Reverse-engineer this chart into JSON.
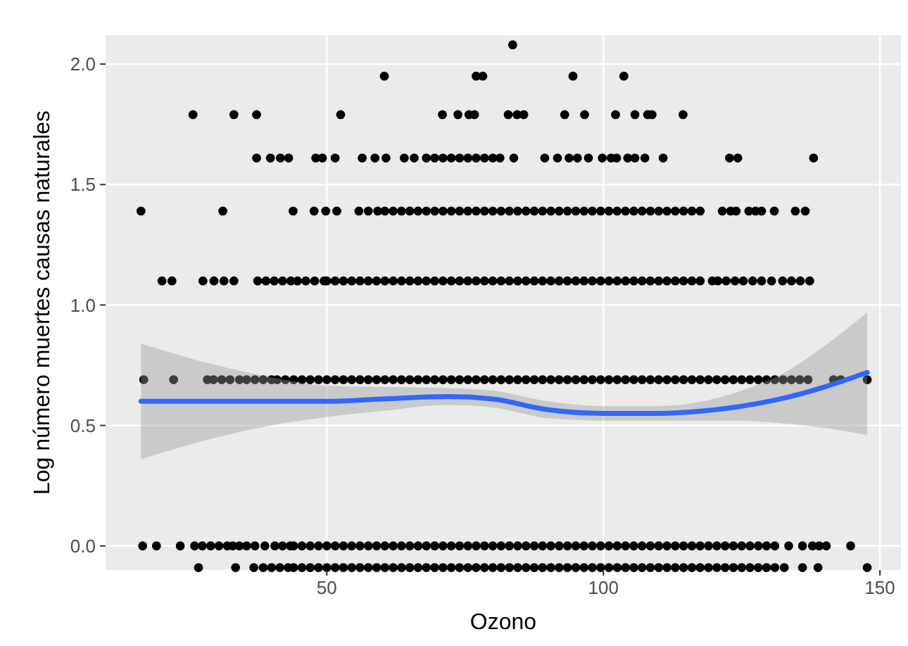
{
  "chart_data": {
    "type": "scatter",
    "xlabel": "Ozono",
    "ylabel": "Log número muertes causas naturales",
    "xlim": [
      10,
      153.8
    ],
    "ylim": [
      -0.1,
      2.12
    ],
    "xticks": [
      50,
      100,
      150
    ],
    "yticks": [
      {
        "value": 0,
        "label": "0.0"
      },
      {
        "value": 0.5,
        "label": "0.5"
      },
      {
        "value": 1,
        "label": "1.0"
      },
      {
        "value": 1.5,
        "label": "1.5"
      },
      {
        "value": 2,
        "label": "2.0"
      }
    ],
    "grid": true,
    "marker": "circle",
    "series": [
      {
        "color": "#000000",
        "x": [
          16.9,
          22.3,
          28.4,
          29.5,
          31,
          32.5,
          34.2,
          35.5,
          37,
          38.5,
          40,
          41,
          42.5,
          44,
          45.5,
          47,
          48.5,
          50,
          51.5,
          53,
          54.5,
          56,
          57.5,
          59,
          60.5,
          62,
          63.5,
          65,
          66.5,
          68,
          69.5,
          71,
          72.5,
          74,
          75.5,
          77,
          78.5,
          80,
          81.5,
          83,
          84.5,
          86,
          87.5,
          89,
          90.5,
          92,
          93.5,
          95,
          96.5,
          98,
          99.5,
          101,
          102.5,
          104,
          105.5,
          107,
          108.5,
          110,
          111.5,
          113,
          114.5,
          116,
          117.5,
          119,
          120.5,
          122,
          123.5,
          125,
          126.5,
          128,
          129.5,
          131,
          132.5,
          134,
          135.5,
          137,
          141.6,
          142.9,
          147.7
        ],
        "values": [
          0.69,
          0.69,
          0.69,
          0.69,
          0.69,
          0.69,
          0.69,
          0.69,
          0.69,
          0.69,
          0.69,
          0.69,
          0.69,
          0.69,
          0.69,
          0.69,
          0.69,
          0.69,
          0.69,
          0.69,
          0.69,
          0.69,
          0.69,
          0.69,
          0.69,
          0.69,
          0.69,
          0.69,
          0.69,
          0.69,
          0.69,
          0.69,
          0.69,
          0.69,
          0.69,
          0.69,
          0.69,
          0.69,
          0.69,
          0.69,
          0.69,
          0.69,
          0.69,
          0.69,
          0.69,
          0.69,
          0.69,
          0.69,
          0.69,
          0.69,
          0.69,
          0.69,
          0.69,
          0.69,
          0.69,
          0.69,
          0.69,
          0.69,
          0.69,
          0.69,
          0.69,
          0.69,
          0.69,
          0.69,
          0.69,
          0.69,
          0.69,
          0.69,
          0.69,
          0.69,
          0.69,
          0.69,
          0.69,
          0.69,
          0.69,
          0.69,
          0.69,
          0.69,
          0.69
        ]
      },
      {
        "color": "#000000",
        "x": [
          16.7,
          19.2,
          23.5,
          26.1,
          27.5,
          29,
          30.5,
          32,
          33,
          34.2,
          35.5,
          37,
          38.8,
          40.6,
          42,
          43.4,
          44,
          45.5,
          47,
          48.5,
          50,
          51.5,
          53,
          54.5,
          56,
          57.5,
          59,
          60.5,
          62,
          63.5,
          65,
          66.5,
          68,
          69.5,
          71,
          72.5,
          74,
          75.5,
          77,
          78.5,
          80,
          81.5,
          83,
          84.5,
          86,
          87.5,
          89,
          90.5,
          92,
          93.5,
          95,
          96.5,
          98,
          99.5,
          101,
          102.5,
          104,
          105.5,
          107,
          108.5,
          110,
          111.5,
          113,
          114.5,
          116,
          117.5,
          119,
          120.5,
          122,
          123.5,
          125,
          126.5,
          128,
          129.5,
          131,
          133.5,
          136,
          137.8,
          139,
          140.3,
          144.7
        ],
        "values": [
          0,
          0,
          0,
          0,
          0,
          0,
          0,
          0,
          0,
          0,
          0,
          0,
          0,
          0,
          0,
          0,
          0,
          0,
          0,
          0,
          0,
          0,
          0,
          0,
          0,
          0,
          0,
          0,
          0,
          0,
          0,
          0,
          0,
          0,
          0,
          0,
          0,
          0,
          0,
          0,
          0,
          0,
          0,
          0,
          0,
          0,
          0,
          0,
          0,
          0,
          0,
          0,
          0,
          0,
          0,
          0,
          0,
          0,
          0,
          0,
          0,
          0,
          0,
          0,
          0,
          0,
          0,
          0,
          0,
          0,
          0,
          0,
          0,
          0,
          0,
          0,
          0,
          0,
          0,
          0,
          0
        ]
      },
      {
        "color": "#000000",
        "x": [
          26.8,
          33.5,
          36.8,
          38.5,
          40,
          41.5,
          43,
          44,
          45.5,
          47,
          48.5,
          50,
          51.5,
          53,
          54.5,
          56,
          57.5,
          59,
          60.5,
          62,
          63.5,
          65,
          66.5,
          68,
          69.5,
          71,
          72.5,
          74,
          75.5,
          77,
          78.5,
          80,
          81.5,
          83,
          84.5,
          86,
          87.5,
          89,
          90.5,
          92,
          93.5,
          95,
          96.5,
          98,
          99.5,
          101,
          102.5,
          104,
          105.5,
          107,
          108.5,
          110,
          111.5,
          113,
          114.5,
          116,
          117.5,
          119,
          120.5,
          122,
          123.5,
          125,
          126.5,
          128,
          129.5,
          131,
          132.7,
          136,
          138.8,
          147.7
        ],
        "values": [
          -0.09,
          -0.09,
          -0.09,
          -0.09,
          -0.09,
          -0.09,
          -0.09,
          -0.09,
          -0.09,
          -0.09,
          -0.09,
          -0.09,
          -0.09,
          -0.09,
          -0.09,
          -0.09,
          -0.09,
          -0.09,
          -0.09,
          -0.09,
          -0.09,
          -0.09,
          -0.09,
          -0.09,
          -0.09,
          -0.09,
          -0.09,
          -0.09,
          -0.09,
          -0.09,
          -0.09,
          -0.09,
          -0.09,
          -0.09,
          -0.09,
          -0.09,
          -0.09,
          -0.09,
          -0.09,
          -0.09,
          -0.09,
          -0.09,
          -0.09,
          -0.09,
          -0.09,
          -0.09,
          -0.09,
          -0.09,
          -0.09,
          -0.09,
          -0.09,
          -0.09,
          -0.09,
          -0.09,
          -0.09,
          -0.09,
          -0.09,
          -0.09,
          -0.09,
          -0.09,
          -0.09,
          -0.09,
          -0.09,
          -0.09,
          -0.09,
          -0.09,
          -0.09,
          -0.09,
          -0.09,
          -0.09
        ]
      },
      {
        "color": "#000000",
        "x": [
          20.2,
          22,
          27.6,
          29.6,
          31.4,
          33.2,
          37.5,
          39,
          40.5,
          42,
          43.5,
          44.7,
          46.2,
          47.8,
          49.5,
          50,
          51.5,
          53,
          54.5,
          56,
          57.5,
          59,
          60.5,
          62,
          63.5,
          65,
          66.5,
          68,
          69.5,
          71,
          72.5,
          74,
          75.5,
          77,
          78.5,
          80,
          81.5,
          83,
          84.5,
          86,
          87.5,
          89,
          90.5,
          92,
          93.5,
          95,
          96.5,
          98,
          99.5,
          101,
          102.5,
          104,
          105.5,
          107,
          108.5,
          110,
          111.5,
          113,
          114.5,
          116,
          117.5,
          119.7,
          120.7,
          122.2,
          123.8,
          125.3,
          127,
          128.6,
          130.4,
          132.4,
          134,
          135.6,
          137.3
        ],
        "values": [
          1.1,
          1.1,
          1.1,
          1.1,
          1.1,
          1.1,
          1.1,
          1.1,
          1.1,
          1.1,
          1.1,
          1.1,
          1.1,
          1.1,
          1.1,
          1.1,
          1.1,
          1.1,
          1.1,
          1.1,
          1.1,
          1.1,
          1.1,
          1.1,
          1.1,
          1.1,
          1.1,
          1.1,
          1.1,
          1.1,
          1.1,
          1.1,
          1.1,
          1.1,
          1.1,
          1.1,
          1.1,
          1.1,
          1.1,
          1.1,
          1.1,
          1.1,
          1.1,
          1.1,
          1.1,
          1.1,
          1.1,
          1.1,
          1.1,
          1.1,
          1.1,
          1.1,
          1.1,
          1.1,
          1.1,
          1.1,
          1.1,
          1.1,
          1.1,
          1.1,
          1.1,
          1.1,
          1.1,
          1.1,
          1.1,
          1.1,
          1.1,
          1.1,
          1.1,
          1.1,
          1.1,
          1.1,
          1.1
        ]
      },
      {
        "color": "#000000",
        "x": [
          16.4,
          31.2,
          43.9,
          47.7,
          49.8,
          51.8,
          55.8,
          57.5,
          59.2,
          60.5,
          62,
          63.5,
          65,
          66.5,
          68,
          69.5,
          71,
          72.5,
          74,
          75.5,
          77,
          78.5,
          80,
          81.5,
          83,
          84.5,
          86,
          87.5,
          89,
          90.5,
          92,
          93.5,
          95,
          96.5,
          98,
          99.5,
          101,
          102.5,
          104,
          105.5,
          107,
          108.5,
          110,
          111.5,
          113,
          114.5,
          116,
          117.5,
          121.5,
          123,
          124,
          126.3,
          127.5,
          128.6,
          130.9,
          134.7,
          136.5
        ],
        "values": [
          1.39,
          1.39,
          1.39,
          1.39,
          1.39,
          1.39,
          1.39,
          1.39,
          1.39,
          1.39,
          1.39,
          1.39,
          1.39,
          1.39,
          1.39,
          1.39,
          1.39,
          1.39,
          1.39,
          1.39,
          1.39,
          1.39,
          1.39,
          1.39,
          1.39,
          1.39,
          1.39,
          1.39,
          1.39,
          1.39,
          1.39,
          1.39,
          1.39,
          1.39,
          1.39,
          1.39,
          1.39,
          1.39,
          1.39,
          1.39,
          1.39,
          1.39,
          1.39,
          1.39,
          1.39,
          1.39,
          1.39,
          1.39,
          1.39,
          1.39,
          1.39,
          1.39,
          1.39,
          1.39,
          1.39,
          1.39,
          1.39
        ]
      },
      {
        "color": "#000000",
        "x": [
          37.3,
          39.8,
          41.6,
          43.1,
          48,
          49.2,
          51.5,
          56.4,
          58.7,
          60.7,
          64,
          65.8,
          68,
          69.5,
          71,
          72.5,
          74,
          75.5,
          77,
          78.5,
          80,
          81.3,
          83.8,
          89.4,
          91.7,
          93.8,
          95.3,
          97.3,
          99.8,
          101.4,
          102.4,
          104.4,
          105.7,
          107.5,
          110.8,
          122.8,
          124.3,
          138
        ],
        "values": [
          1.61,
          1.61,
          1.61,
          1.61,
          1.61,
          1.61,
          1.61,
          1.61,
          1.61,
          1.61,
          1.61,
          1.61,
          1.61,
          1.61,
          1.61,
          1.61,
          1.61,
          1.61,
          1.61,
          1.61,
          1.61,
          1.61,
          1.61,
          1.61,
          1.61,
          1.61,
          1.61,
          1.61,
          1.61,
          1.61,
          1.61,
          1.61,
          1.61,
          1.61,
          1.61,
          1.61,
          1.61,
          1.61
        ]
      },
      {
        "color": "#000000",
        "x": [
          25.8,
          33.2,
          37.3,
          52.5,
          70.9,
          73.7,
          75.7,
          76.7,
          82.8,
          84.4,
          85.6,
          93,
          96.6,
          102.2,
          105.7,
          108,
          108.8,
          114.4
        ],
        "values": [
          1.79,
          1.79,
          1.79,
          1.79,
          1.79,
          1.79,
          1.79,
          1.79,
          1.79,
          1.79,
          1.79,
          1.79,
          1.79,
          1.79,
          1.79,
          1.79,
          1.79,
          1.79
        ]
      },
      {
        "color": "#000000",
        "x": [
          60.4,
          77,
          78.2,
          94.5,
          103.7
        ],
        "values": [
          1.95,
          1.95,
          1.95,
          1.95,
          1.95
        ]
      },
      {
        "color": "#000000",
        "x": [
          83.6
        ],
        "values": [
          2.08
        ]
      },
      {
        "type": "line",
        "color": "#3366ff",
        "marker": "none",
        "x": [
          16.4,
          30,
          40,
          50,
          60,
          72,
          80,
          90,
          100,
          110,
          118,
          125,
          132,
          140,
          147.7
        ],
        "values": [
          0.6,
          0.6,
          0.6,
          0.6,
          0.61,
          0.62,
          0.61,
          0.565,
          0.55,
          0.55,
          0.56,
          0.58,
          0.61,
          0.66,
          0.72
        ],
        "lower": [
          0.36,
          0.45,
          0.5,
          0.535,
          0.56,
          0.585,
          0.575,
          0.53,
          0.52,
          0.52,
          0.52,
          0.52,
          0.51,
          0.49,
          0.46
        ],
        "upper": [
          0.84,
          0.75,
          0.7,
          0.665,
          0.66,
          0.655,
          0.645,
          0.6,
          0.58,
          0.58,
          0.6,
          0.645,
          0.71,
          0.83,
          0.97
        ]
      }
    ]
  }
}
